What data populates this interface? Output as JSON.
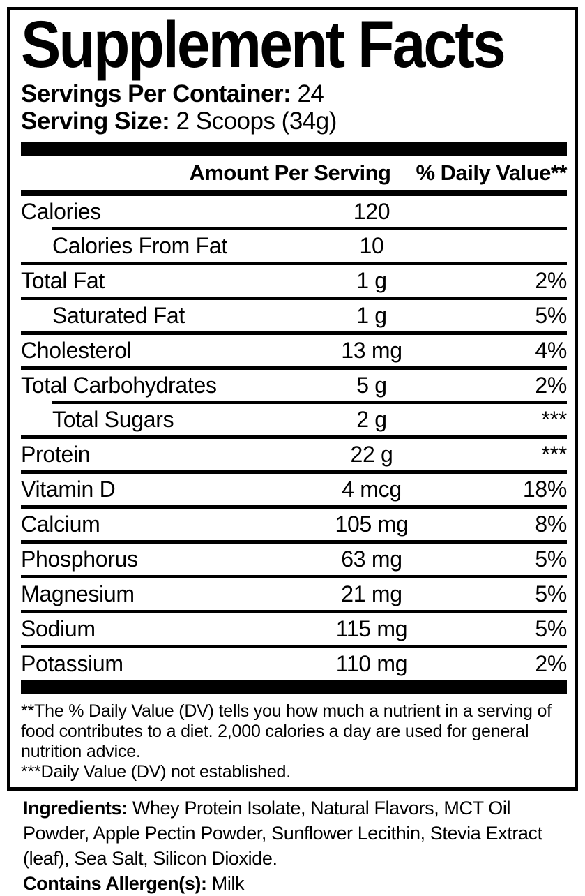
{
  "panel": {
    "title": "Supplement Facts",
    "servings_per_container_label": "Servings Per Container:",
    "servings_per_container_value": "24",
    "serving_size_label": "Serving Size:",
    "serving_size_value": "2 Scoops (34g)"
  },
  "table": {
    "amount_header": "Amount Per Serving",
    "dv_header": "% Daily Value**",
    "rows": [
      {
        "name": "Calories",
        "amount": "120",
        "dv": "",
        "indent": false,
        "separator": "indented"
      },
      {
        "name": "Calories From Fat",
        "amount": "10",
        "dv": "",
        "indent": true,
        "separator": "full"
      },
      {
        "name": "Total Fat",
        "amount": "1 g",
        "dv": "2%",
        "indent": false,
        "separator": "full"
      },
      {
        "name": "Saturated Fat",
        "amount": "1 g",
        "dv": "5%",
        "indent": true,
        "separator": "full"
      },
      {
        "name": "Cholesterol",
        "amount": "13 mg",
        "dv": "4%",
        "indent": false,
        "separator": "full"
      },
      {
        "name": "Total Carbohydrates",
        "amount": "5 g",
        "dv": "2%",
        "indent": false,
        "separator": "indented"
      },
      {
        "name": "Total Sugars",
        "amount": "2 g",
        "dv": "***",
        "indent": true,
        "separator": "full"
      },
      {
        "name": "Protein",
        "amount": "22 g",
        "dv": "***",
        "indent": false,
        "separator": "full"
      },
      {
        "name": "Vitamin D",
        "amount": "4 mcg",
        "dv": "18%",
        "indent": false,
        "separator": "full"
      },
      {
        "name": "Calcium",
        "amount": "105 mg",
        "dv": "8%",
        "indent": false,
        "separator": "full"
      },
      {
        "name": "Phosphorus",
        "amount": "63 mg",
        "dv": "5%",
        "indent": false,
        "separator": "full"
      },
      {
        "name": "Magnesium",
        "amount": "21 mg",
        "dv": "5%",
        "indent": false,
        "separator": "full"
      },
      {
        "name": "Sodium",
        "amount": "115 mg",
        "dv": "5%",
        "indent": false,
        "separator": "full"
      },
      {
        "name": "Potassium",
        "amount": "110 mg",
        "dv": "2%",
        "indent": false,
        "separator": "none"
      }
    ]
  },
  "footnotes": {
    "daily_value_note": "**The % Daily Value (DV) tells you how much a nutrient in a serving of food contributes to a diet. 2,000 calories a day are used for general nutrition advice.",
    "not_established_note": "***Daily Value (DV) not established."
  },
  "ingredients": {
    "label": "Ingredients:",
    "list": "Whey Protein Isolate, Natural Flavors, MCT Oil Powder, Apple Pectin Powder, Sunflower Lecithin, Stevia Extract (leaf), Sea Salt, Silicon Dioxide.",
    "allergen_label": "Contains Allergen(s):",
    "allergen_value": "Milk"
  },
  "colors": {
    "text": "#000000",
    "background": "#ffffff"
  }
}
